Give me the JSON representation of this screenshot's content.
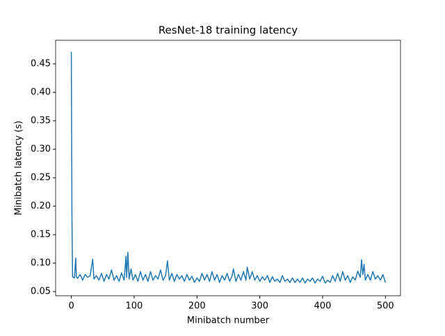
{
  "chart_data": {
    "type": "line",
    "title": "ResNet-18 training latency",
    "x_label": "Minibatch number",
    "y_label": "Minibatch latency (s)",
    "color": "#1f77b4",
    "x": [
      0,
      1,
      2,
      5,
      7,
      8,
      10,
      14,
      18,
      22,
      26,
      30,
      34,
      36,
      40,
      44,
      48,
      52,
      56,
      60,
      64,
      68,
      72,
      76,
      80,
      84,
      87,
      88,
      90,
      92,
      95,
      98,
      102,
      106,
      110,
      114,
      118,
      122,
      126,
      130,
      134,
      138,
      142,
      146,
      150,
      153,
      156,
      160,
      164,
      168,
      172,
      176,
      180,
      184,
      188,
      192,
      196,
      200,
      204,
      208,
      212,
      216,
      220,
      224,
      228,
      232,
      236,
      240,
      244,
      248,
      252,
      256,
      258,
      262,
      266,
      270,
      274,
      278,
      280,
      284,
      288,
      292,
      296,
      300,
      304,
      308,
      312,
      316,
      320,
      324,
      328,
      332,
      336,
      340,
      344,
      348,
      352,
      356,
      360,
      364,
      368,
      372,
      376,
      380,
      384,
      388,
      392,
      396,
      400,
      404,
      408,
      412,
      416,
      420,
      424,
      428,
      432,
      436,
      440,
      444,
      448,
      452,
      456,
      460,
      462,
      464,
      466,
      468,
      472,
      476,
      480,
      484,
      488,
      492,
      496,
      500
    ],
    "values": [
      0.471,
      0.18,
      0.076,
      0.074,
      0.109,
      0.076,
      0.073,
      0.08,
      0.07,
      0.08,
      0.075,
      0.078,
      0.107,
      0.072,
      0.078,
      0.07,
      0.082,
      0.068,
      0.08,
      0.072,
      0.088,
      0.07,
      0.078,
      0.068,
      0.083,
      0.07,
      0.112,
      0.075,
      0.119,
      0.072,
      0.09,
      0.07,
      0.08,
      0.068,
      0.085,
      0.07,
      0.08,
      0.068,
      0.085,
      0.07,
      0.078,
      0.072,
      0.088,
      0.07,
      0.078,
      0.104,
      0.07,
      0.082,
      0.068,
      0.08,
      0.072,
      0.078,
      0.068,
      0.08,
      0.07,
      0.077,
      0.066,
      0.074,
      0.068,
      0.082,
      0.07,
      0.08,
      0.068,
      0.085,
      0.07,
      0.08,
      0.066,
      0.078,
      0.07,
      0.082,
      0.068,
      0.078,
      0.09,
      0.068,
      0.08,
      0.07,
      0.085,
      0.07,
      0.093,
      0.072,
      0.085,
      0.07,
      0.078,
      0.068,
      0.076,
      0.07,
      0.078,
      0.066,
      0.076,
      0.068,
      0.072,
      0.066,
      0.078,
      0.068,
      0.072,
      0.066,
      0.074,
      0.066,
      0.072,
      0.066,
      0.074,
      0.065,
      0.072,
      0.068,
      0.074,
      0.065,
      0.072,
      0.068,
      0.077,
      0.065,
      0.07,
      0.066,
      0.078,
      0.068,
      0.082,
      0.068,
      0.085,
      0.07,
      0.078,
      0.066,
      0.076,
      0.07,
      0.086,
      0.075,
      0.106,
      0.08,
      0.098,
      0.07,
      0.08,
      0.07,
      0.085,
      0.072,
      0.078,
      0.07,
      0.08,
      0.066
    ],
    "xlim": [
      -25,
      524
    ],
    "ylim": [
      0.0427,
      0.4915
    ],
    "xticks": [
      0,
      100,
      200,
      300,
      400,
      500
    ],
    "yticks": [
      0.05,
      {
        "value": 0.1,
        "label": "0.10"
      },
      0.15,
      {
        "value": 0.2,
        "label": "0.20"
      },
      0.25,
      {
        "value": 0.3,
        "label": "0.30"
      },
      0.35,
      {
        "value": 0.4,
        "label": "0.40"
      },
      0.45
    ]
  }
}
